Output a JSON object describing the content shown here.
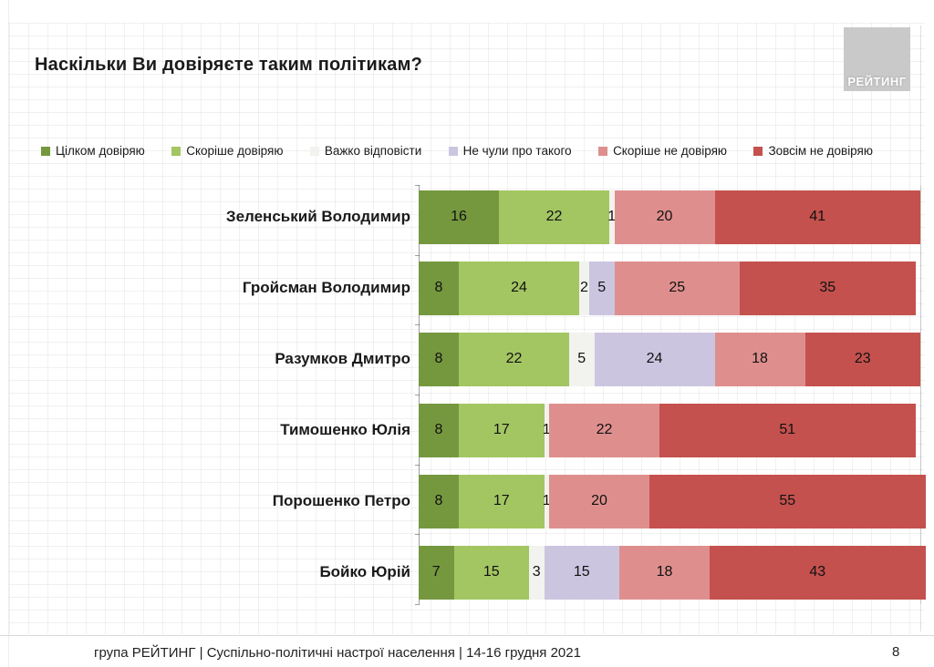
{
  "slide": {
    "title": "Наскільки Ви довіряєте таким політикам?",
    "logo_text": "РЕЙТИНГ",
    "footer": "група РЕЙТИНГ | Суспільно-політичні настрої населення |  14-16 грудня 2021",
    "page_number": "8"
  },
  "chart_data": {
    "type": "bar",
    "orientation": "horizontal",
    "stacked": true,
    "title": "Наскільки Ви довіряєте таким політикам?",
    "xlim": [
      0,
      100
    ],
    "value_labels": true,
    "legend_position": "top",
    "categories": [
      "Зеленський Володимир",
      "Гройсман Володимир",
      "Разумков Дмитро",
      "Тимошенко Юлія",
      "Порошенко Петро",
      "Бойко Юрій"
    ],
    "series": [
      {
        "name": "Цілком довіряю",
        "color": "#75983F",
        "values": [
          16,
          8,
          8,
          8,
          8,
          7
        ]
      },
      {
        "name": "Скоріше довіряю",
        "color": "#A3C662",
        "values": [
          22,
          24,
          22,
          17,
          17,
          15
        ]
      },
      {
        "name": "Важко відповісти",
        "color": "#F2F2EE",
        "values": [
          1,
          2,
          5,
          1,
          1,
          3
        ]
      },
      {
        "name": "Не чули про такого",
        "color": "#CCC5E0",
        "values": [
          0,
          5,
          24,
          0,
          0,
          15
        ]
      },
      {
        "name": "Скоріше не довіряю",
        "color": "#DE8F8D",
        "values": [
          20,
          25,
          18,
          22,
          20,
          18
        ]
      },
      {
        "name": "Зовсім не довіряю",
        "color": "#C4514D",
        "values": [
          41,
          35,
          23,
          51,
          55,
          43
        ]
      }
    ]
  }
}
